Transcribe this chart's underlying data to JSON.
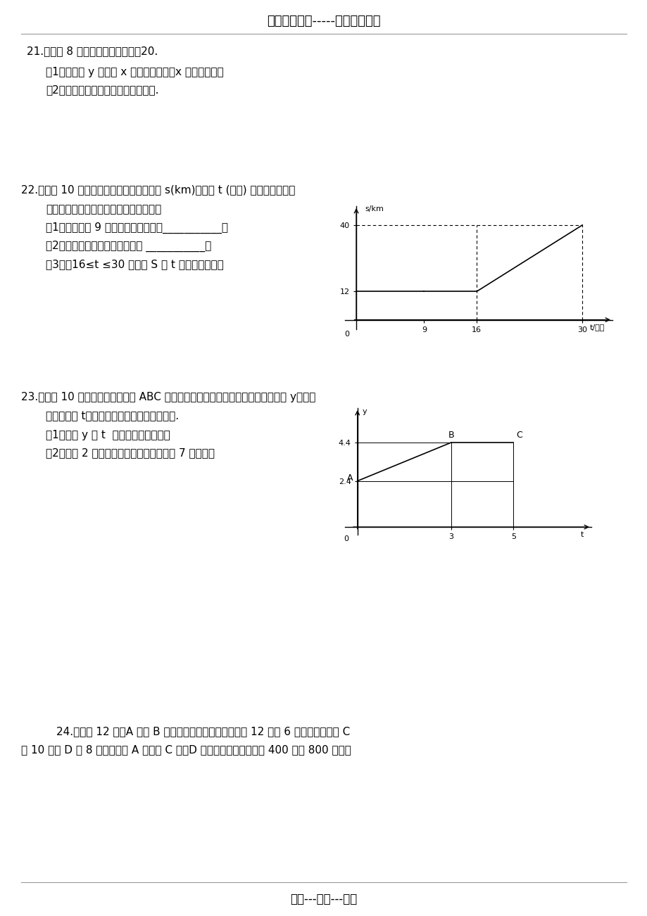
{
  "bg_color": "#ffffff",
  "title": "精选优质文档-----倦情为你奉上",
  "footer": "专心---专注---专业",
  "q21_main": "21.（满分 8 分）已知长方形周长为20.",
  "q21_1": "（1）写出长 y 关于宽 x 的函数解析式（x 为自变量）；",
  "q21_2": "（2）在直角坐标系中，画出函数图像.",
  "q22_main": "22.（满分 10 分）右图是某汽车行驶的路程 s(km)与时间 t (分钟) 的函数关系图。",
  "q22_0": "观察图中所提供的信息，解答下列问题：",
  "q22_1": "（1）汽车在前 9 分钟内的平均速度是___________；",
  "q22_2": "（2）汽车在中途停了多长时间？ ___________；",
  "q22_3": "（3）录16≤t ≤30 时，求 S 与 t 的函数关系式。",
  "q23_main": "23.（满分 10 分）如图所示的折线 ABC 表示从甲地向乙地打长途电话所需的电话费 y（元）",
  "q23_0": "与通话时间 t（分钟）之间的函数关系的图像.",
  "q23_1": "（1）写出 y 与 t  之间的函数关系式；",
  "q23_2": "（2）通话 2 分钟应付通话费多少元？通话 7 分钟呢？",
  "q24_main": "24.（满分 12 分）A 市和 B 市分别有库存的某联合收割机 12 台和 6 台，现决定开往 C",
  "q24_2": "市 10 台和 D 市 8 台，已知从 A 市开往 C 市、D 市的油料费分别为每台 400 元和 800 元，从"
}
